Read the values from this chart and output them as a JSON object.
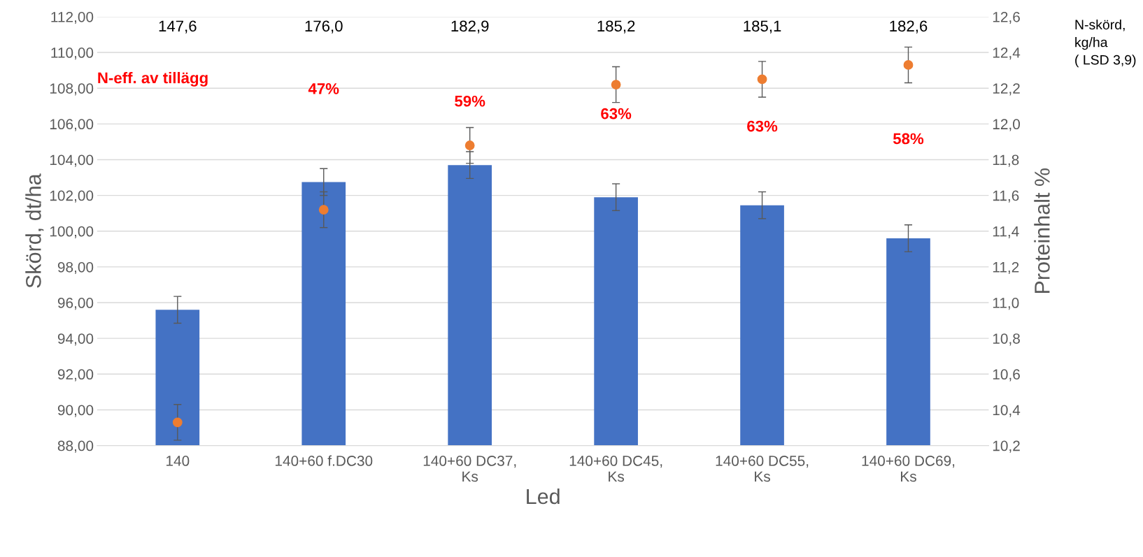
{
  "chart_data": {
    "type": "bar",
    "xlabel": "Led",
    "ylabel": "Skörd, dt/ha",
    "y2label": "Proteinhalt %",
    "categories": [
      "140",
      "140+60 f.DC30",
      "140+60 DC37,\nKs",
      "140+60 DC45,\nKs",
      "140+60 DC55,\nKs",
      "140+60 DC69,\nKs"
    ],
    "series": [
      {
        "color": "#4472c4",
        "values": [
          95.6,
          102.75,
          103.7,
          101.9,
          101.45,
          99.6
        ],
        "errors": [
          0.75,
          0.75,
          0.75,
          0.75,
          0.75,
          0.75
        ]
      },
      {
        "type": "scatter",
        "axis": "y2",
        "color": "#ed7d31",
        "marker": "circle",
        "values": [
          10.33,
          11.52,
          11.88,
          12.22,
          12.25,
          12.33
        ],
        "errors": [
          0.1,
          0.1,
          0.1,
          0.1,
          0.1,
          0.1
        ]
      }
    ],
    "ylim": [
      88,
      112
    ],
    "yticks": [
      {
        "value": 88,
        "label": "88,00"
      },
      {
        "value": 90,
        "label": "90,00"
      },
      {
        "value": 92,
        "label": "92,00"
      },
      {
        "value": 94,
        "label": "94,00"
      },
      {
        "value": 96,
        "label": "96,00"
      },
      {
        "value": 98,
        "label": "98,00"
      },
      {
        "value": 100,
        "label": "100,00"
      },
      {
        "value": 102,
        "label": "102,00"
      },
      {
        "value": 104,
        "label": "104,00"
      },
      {
        "value": 106,
        "label": "106,00"
      },
      {
        "value": 108,
        "label": "108,00"
      },
      {
        "value": 110,
        "label": "110,00"
      },
      {
        "value": 112,
        "label": "112,00"
      }
    ],
    "y2lim": [
      10.2,
      12.6
    ],
    "y2ticks": [
      {
        "value": 10.2,
        "label": "10,2"
      },
      {
        "value": 10.4,
        "label": "10,4"
      },
      {
        "value": 10.6,
        "label": "10,6"
      },
      {
        "value": 10.8,
        "label": "10,8"
      },
      {
        "value": 11.0,
        "label": "11,0"
      },
      {
        "value": 11.2,
        "label": "11,2"
      },
      {
        "value": 11.4,
        "label": "11,4"
      },
      {
        "value": 11.6,
        "label": "11,6"
      },
      {
        "value": 11.8,
        "label": "11,8"
      },
      {
        "value": 12.0,
        "label": "12,0"
      },
      {
        "value": 12.2,
        "label": "12,2"
      },
      {
        "value": 12.4,
        "label": "12,4"
      },
      {
        "value": 12.6,
        "label": "12,6"
      }
    ],
    "grid": "y",
    "legend": false,
    "annotations": [
      "147,6",
      "176,0",
      "182,9",
      "185,2",
      "185,1",
      "182,6",
      "N-eff. av tillägg",
      "47%",
      "59%",
      "63%",
      "63%",
      "58%",
      "N-skörd,\nkg/ha\n( LSD 3,9)"
    ]
  }
}
